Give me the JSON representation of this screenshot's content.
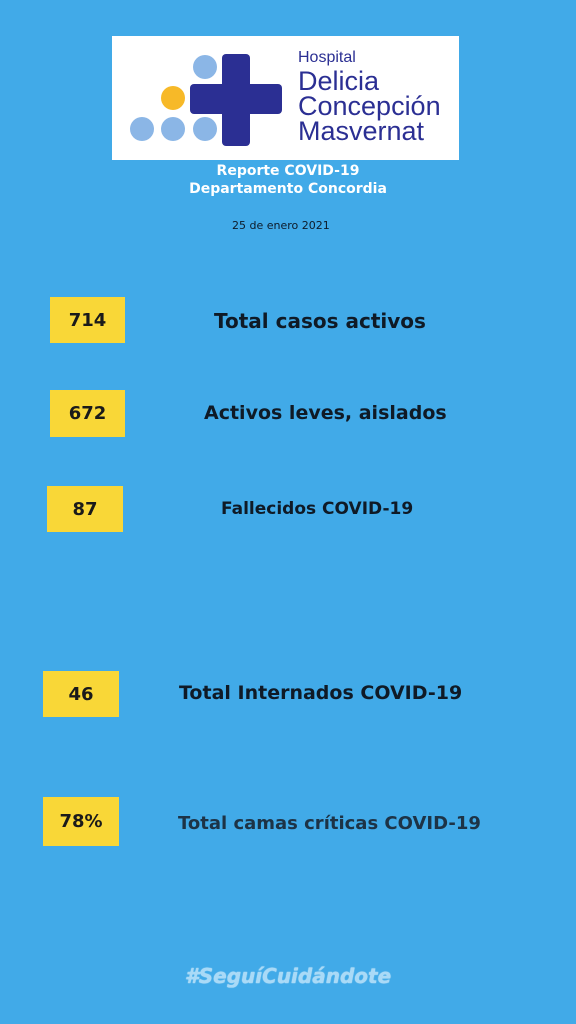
{
  "logo": {
    "line1": "Hospital",
    "line2": "Delicia",
    "line3": "Concepción",
    "line4": "Masvernat",
    "colors": {
      "cross": "#2b2f93",
      "dots": "#8bb6e6",
      "accent_dot": "#f7b928"
    }
  },
  "header": {
    "title": "Reporte  COVID-19",
    "department": "Departamento Concordia",
    "date": "25 de enero 2021"
  },
  "stats": [
    {
      "value": "714",
      "label": "Total casos activos"
    },
    {
      "value": "672",
      "label": "Activos leves, aislados"
    },
    {
      "value": "87",
      "label": "Fallecidos  COVID-19"
    },
    {
      "value": "46",
      "label": "Total Internados COVID-19"
    },
    {
      "value": "78%",
      "label": "Total camas críticas COVID-19"
    }
  ],
  "footer": {
    "hashtag": "#SeguíCuidándote"
  },
  "theme": {
    "background": "#41aae8",
    "box": "#f9d737"
  }
}
